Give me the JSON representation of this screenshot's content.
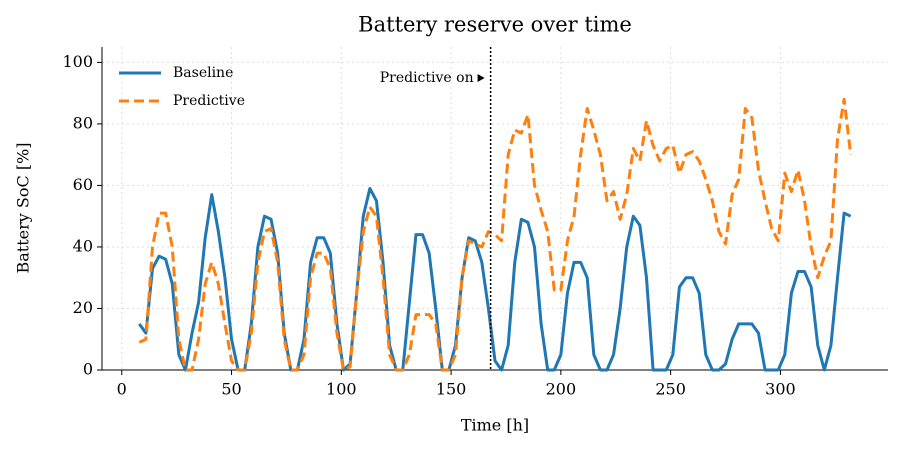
{
  "chart_data": {
    "type": "line",
    "title": "Battery reserve over time",
    "xlabel": "Time [h]",
    "ylabel": "Battery SoC [%]",
    "x": [
      8,
      11,
      14,
      17,
      20,
      23,
      26,
      29,
      32,
      35,
      38,
      41,
      44,
      47,
      50,
      53,
      56,
      59,
      62,
      65,
      68,
      71,
      74,
      77,
      80,
      83,
      86,
      89,
      92,
      95,
      98,
      101,
      104,
      107,
      110,
      113,
      116,
      119,
      122,
      125,
      128,
      131,
      134,
      137,
      140,
      143,
      146,
      149,
      152,
      155,
      158,
      161,
      164,
      167,
      170,
      173,
      176,
      179,
      182,
      185,
      188,
      191,
      194,
      197,
      200,
      203,
      206,
      209,
      212,
      215,
      218,
      221,
      224,
      227,
      230,
      233,
      236,
      239,
      242,
      245,
      248,
      251,
      254,
      257,
      260,
      263,
      266,
      269,
      272,
      275,
      278,
      281,
      284,
      287,
      290,
      293,
      296,
      299,
      302,
      305,
      308,
      311,
      314,
      317,
      320,
      323,
      326,
      329,
      332
    ],
    "series": [
      {
        "name": "Baseline",
        "color": "#1f77b4",
        "dash": false,
        "values": [
          15,
          12,
          33,
          37,
          36,
          28,
          5,
          0,
          12,
          22,
          43,
          57,
          45,
          30,
          10,
          0,
          0,
          15,
          40,
          50,
          49,
          38,
          12,
          0,
          0,
          10,
          35,
          43,
          43,
          38,
          15,
          0,
          2,
          25,
          50,
          59,
          55,
          35,
          8,
          0,
          0,
          22,
          44,
          44,
          38,
          20,
          0,
          0,
          8,
          30,
          43,
          42,
          35,
          20,
          3,
          0,
          8,
          35,
          49,
          48,
          40,
          15,
          0,
          0,
          5,
          25,
          35,
          35,
          30,
          5,
          0,
          0,
          5,
          20,
          40,
          50,
          47,
          30,
          0,
          0,
          0,
          5,
          27,
          30,
          30,
          25,
          5,
          0,
          0,
          2,
          10,
          15,
          15,
          15,
          12,
          0,
          0,
          0,
          5,
          25,
          32,
          32,
          27,
          8,
          0,
          8,
          30,
          51,
          50
        ]
      },
      {
        "name": "Predictive",
        "color": "#ff7f0e",
        "dash": true,
        "values": [
          9,
          10,
          40,
          51,
          51,
          40,
          10,
          0,
          0,
          10,
          28,
          35,
          28,
          15,
          3,
          0,
          0,
          12,
          35,
          45,
          46,
          35,
          10,
          0,
          0,
          5,
          30,
          38,
          38,
          33,
          12,
          0,
          1,
          25,
          45,
          53,
          50,
          30,
          5,
          0,
          0,
          5,
          18,
          18,
          18,
          15,
          0,
          0,
          5,
          30,
          42,
          41,
          40,
          45,
          44,
          42,
          70,
          78,
          77,
          83,
          60,
          52,
          45,
          26,
          26,
          42,
          50,
          70,
          85,
          78,
          70,
          55,
          58,
          49,
          57,
          72,
          68,
          81,
          73,
          68,
          72,
          73,
          64,
          70,
          71,
          68,
          62,
          55,
          45,
          41,
          57,
          62,
          85,
          82,
          65,
          55,
          46,
          42,
          64,
          58,
          65,
          55,
          40,
          30,
          37,
          42,
          75,
          88,
          70
        ]
      }
    ],
    "annotation": {
      "text": "Predictive on",
      "x": 168
    },
    "xlim": [
      -9,
      349
    ],
    "ylim": [
      0,
      105
    ],
    "xticks": [
      0,
      50,
      100,
      150,
      200,
      250,
      300
    ],
    "yticks": [
      0,
      20,
      40,
      60,
      80,
      100
    ],
    "grid": true,
    "legend": "upper left"
  }
}
